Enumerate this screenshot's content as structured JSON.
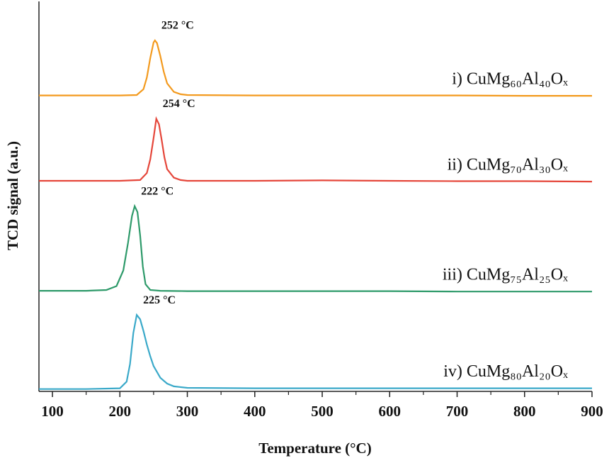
{
  "chart_data": {
    "type": "line",
    "xlabel": "Temperature (°C)",
    "ylabel": "TCD signal (a.u.)",
    "xlim": [
      80,
      900
    ],
    "xticks": [
      100,
      200,
      300,
      400,
      500,
      600,
      700,
      800,
      900
    ],
    "ylim": [
      0,
      100
    ],
    "series": [
      {
        "name": "i) CuMg₆₀Al₄₀Oₓ",
        "color": "#f39a1e",
        "peak_label": "252 °C",
        "x": [
          80,
          150,
          200,
          225,
          235,
          240,
          245,
          250,
          252,
          255,
          260,
          265,
          270,
          280,
          290,
          300,
          400,
          500,
          600,
          700,
          800,
          900
        ],
        "values": [
          75.9,
          75.9,
          75.9,
          76.0,
          77.5,
          80.5,
          85.5,
          89.5,
          90.0,
          89.3,
          86.0,
          82.0,
          79.0,
          76.8,
          76.2,
          76.0,
          75.9,
          75.9,
          75.9,
          75.9,
          75.8,
          75.8
        ]
      },
      {
        "name": "ii) CuMg₇₀Al₃₀Oₓ",
        "color": "#e5463a",
        "peak_label": "254 °C",
        "x": [
          80,
          150,
          200,
          230,
          240,
          245,
          250,
          254,
          258,
          262,
          266,
          270,
          280,
          290,
          300,
          400,
          500,
          600,
          700,
          800,
          900
        ],
        "values": [
          54.0,
          54.0,
          54.0,
          54.2,
          56.0,
          59.5,
          65.0,
          69.9,
          68.5,
          64.5,
          60.0,
          57.0,
          54.8,
          54.2,
          54.0,
          54.0,
          54.1,
          54.0,
          53.9,
          53.9,
          53.8
        ]
      },
      {
        "name": "iii) CuMg₇₅Al₂₅Oₓ",
        "color": "#2e9a6a",
        "peak_label": "222 °C",
        "x": [
          80,
          150,
          180,
          195,
          205,
          212,
          218,
          222,
          226,
          230,
          234,
          238,
          245,
          260,
          300,
          400,
          500,
          600,
          700,
          800,
          900
        ],
        "values": [
          25.8,
          25.8,
          26.0,
          27.0,
          31.0,
          38.0,
          45.0,
          47.5,
          46.0,
          40.0,
          32.0,
          27.5,
          26.0,
          25.8,
          25.7,
          25.7,
          25.7,
          25.7,
          25.6,
          25.6,
          25.6
        ]
      },
      {
        "name": "iv) CuMg₈₀Al₂₀Oₓ",
        "color": "#3aa9c9",
        "peak_label": "225 °C",
        "x": [
          80,
          150,
          200,
          210,
          215,
          220,
          225,
          230,
          235,
          240,
          245,
          250,
          260,
          270,
          280,
          300,
          400,
          500,
          600,
          700,
          800,
          900
        ],
        "values": [
          0.6,
          0.6,
          0.8,
          2.5,
          7.0,
          15.0,
          19.6,
          18.5,
          15.5,
          12.0,
          9.0,
          6.5,
          3.5,
          2.0,
          1.3,
          0.9,
          0.8,
          0.8,
          0.8,
          0.8,
          0.8,
          0.8
        ]
      }
    ]
  }
}
